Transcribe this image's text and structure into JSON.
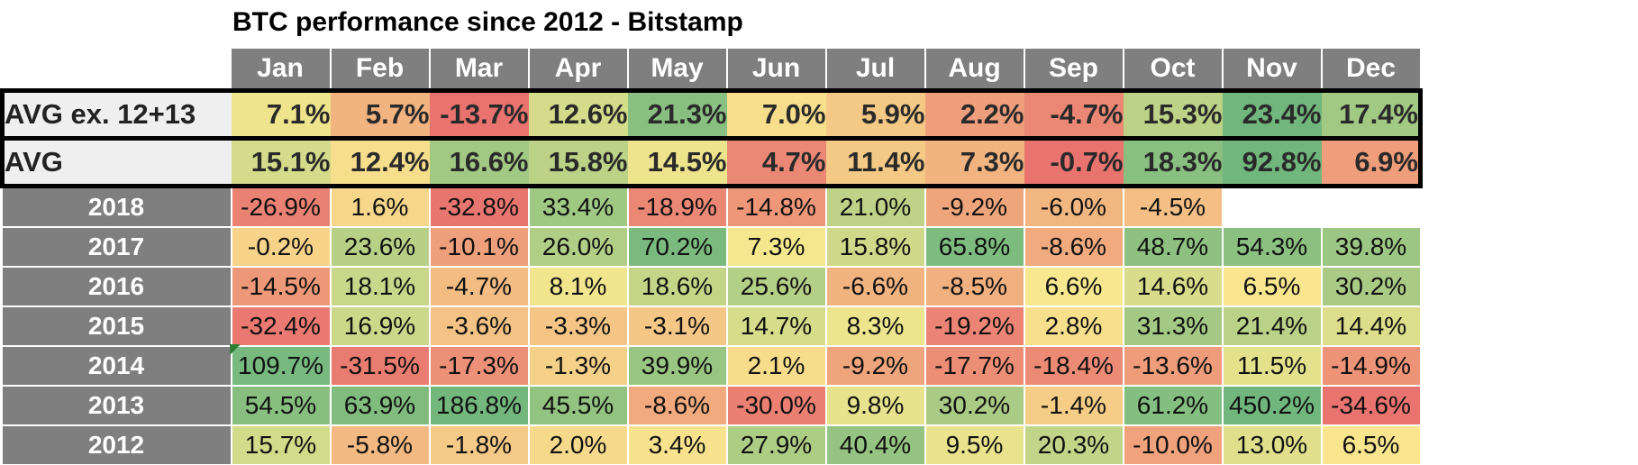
{
  "chart_data": {
    "type": "heatmap",
    "title": "BTC performance since 2012 - Bitstamp",
    "columns": [
      "Jan",
      "Feb",
      "Mar",
      "Apr",
      "May",
      "Jun",
      "Jul",
      "Aug",
      "Sep",
      "Oct",
      "Nov",
      "Dec"
    ],
    "rows": [
      {
        "label": "AVG ex. 12+13",
        "summary": true,
        "values": [
          7.1,
          5.7,
          -13.7,
          12.6,
          21.3,
          7.0,
          5.9,
          2.2,
          -4.7,
          15.3,
          23.4,
          17.4
        ]
      },
      {
        "label": "AVG",
        "summary": true,
        "values": [
          15.1,
          12.4,
          16.6,
          15.8,
          14.5,
          4.7,
          11.4,
          7.3,
          -0.7,
          18.3,
          92.8,
          6.9
        ]
      },
      {
        "label": "2018",
        "values": [
          -26.9,
          1.6,
          -32.8,
          33.4,
          -18.9,
          -14.8,
          21.0,
          -9.2,
          -6.0,
          -4.5,
          null,
          null
        ]
      },
      {
        "label": "2017",
        "values": [
          -0.2,
          23.6,
          -10.1,
          26.0,
          70.2,
          7.3,
          15.8,
          65.8,
          -8.6,
          48.7,
          54.3,
          39.8
        ]
      },
      {
        "label": "2016",
        "values": [
          -14.5,
          18.1,
          -4.7,
          8.1,
          18.6,
          25.6,
          -6.6,
          -8.5,
          6.6,
          14.6,
          6.5,
          30.2
        ]
      },
      {
        "label": "2015",
        "values": [
          -32.4,
          16.9,
          -3.6,
          -3.3,
          -3.1,
          14.7,
          8.3,
          -19.2,
          2.8,
          31.3,
          21.4,
          14.4
        ]
      },
      {
        "label": "2014",
        "values": [
          109.7,
          -31.5,
          -17.3,
          -1.3,
          39.9,
          2.1,
          -9.2,
          -17.7,
          -18.4,
          -13.6,
          11.5,
          -14.9
        ]
      },
      {
        "label": "2013",
        "values": [
          54.5,
          63.9,
          186.8,
          45.5,
          -8.6,
          -30.0,
          9.8,
          30.2,
          -1.4,
          61.2,
          450.2,
          -34.6
        ]
      },
      {
        "label": "2012",
        "values": [
          15.7,
          -5.8,
          -1.8,
          2.0,
          3.4,
          27.9,
          40.4,
          9.5,
          20.3,
          -10.0,
          13.0,
          6.5
        ]
      }
    ],
    "unit": "%",
    "colors": {
      "low": "#e8736f",
      "mid": "#f9e98f",
      "high": "#70b67d",
      "header": "#7f7f7f",
      "label_bg": "#efefef"
    }
  }
}
